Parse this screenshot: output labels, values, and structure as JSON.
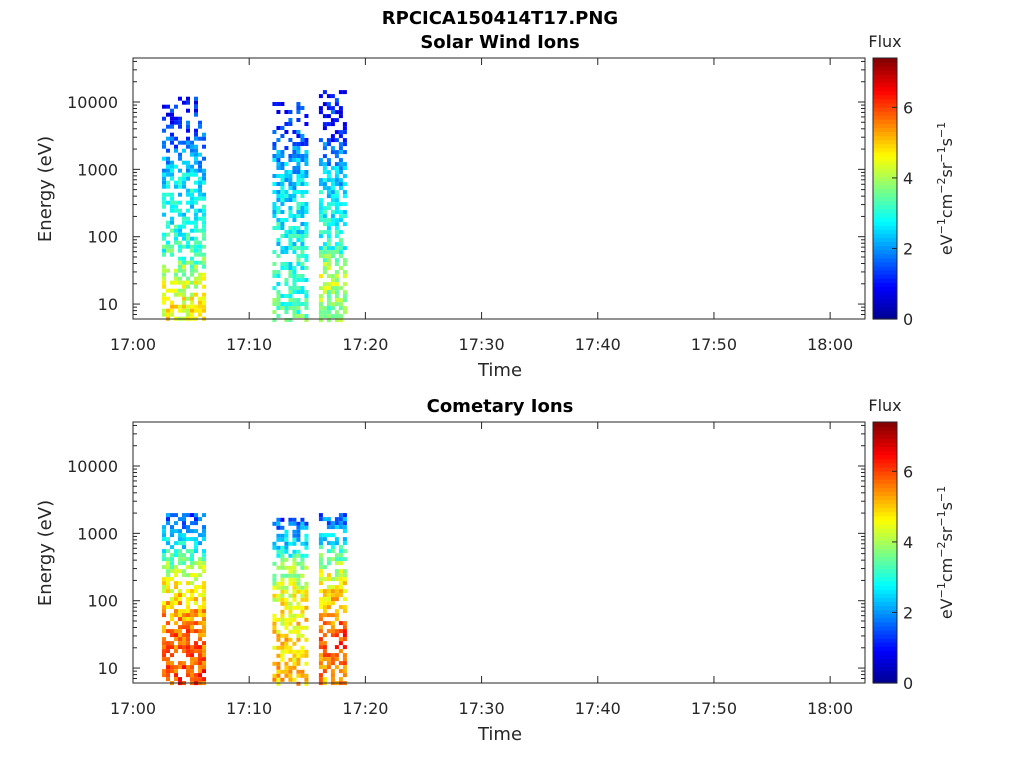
{
  "figure": {
    "title": "RPCICA150414T17.PNG"
  },
  "colors": {
    "axis": "#262626",
    "colormap": [
      "#00008f",
      "#0000ff",
      "#0080ff",
      "#00ffff",
      "#80ff80",
      "#ffff00",
      "#ff8000",
      "#ff0000",
      "#800000"
    ]
  },
  "chart_data": [
    {
      "type": "heatmap",
      "title": "Solar Wind Ions",
      "xlabel": "Time",
      "ylabel": "Energy (eV)",
      "y_scale": "log",
      "xlim": [
        "17:00",
        "18:03"
      ],
      "ylim": [
        6,
        45000
      ],
      "x_ticks": [
        "17:00",
        "17:10",
        "17:20",
        "17:30",
        "17:40",
        "17:50",
        "18:00"
      ],
      "y_ticks": [
        {
          "value": 10,
          "label": "10"
        },
        {
          "value": 100,
          "label": "100"
        },
        {
          "value": 1000,
          "label": "1000"
        },
        {
          "value": 10000,
          "label": "10000"
        }
      ],
      "colorbar": {
        "title": "Flux",
        "label": "eV-1cm-2sr-1s-1",
        "range": [
          0,
          7.4
        ],
        "ticks": [
          "0",
          "2",
          "4",
          "6"
        ]
      },
      "bursts": [
        {
          "start": "17:02.5",
          "end": "17:06.0",
          "emin": 6,
          "emax": 12000,
          "profile": [
            [
              8,
              4.6
            ],
            [
              20,
              4.3
            ],
            [
              60,
              3.2
            ],
            [
              200,
              2.8
            ],
            [
              800,
              2.6
            ],
            [
              2000,
              1.8
            ],
            [
              6000,
              1.2
            ],
            [
              12000,
              1.0
            ]
          ]
        },
        {
          "start": "17:12.0",
          "end": "17:15.0",
          "emin": 6,
          "emax": 10000,
          "profile": [
            [
              8,
              3.4
            ],
            [
              30,
              3.0
            ],
            [
              100,
              2.8
            ],
            [
              400,
              2.6
            ],
            [
              1000,
              2.3
            ],
            [
              3000,
              1.6
            ],
            [
              10000,
              1.0
            ]
          ]
        },
        {
          "start": "17:16.0",
          "end": "17:18.3",
          "emin": 6,
          "emax": 15000,
          "profile": [
            [
              8,
              3.6
            ],
            [
              25,
              4.2
            ],
            [
              80,
              3.0
            ],
            [
              300,
              2.8
            ],
            [
              1000,
              2.2
            ],
            [
              3000,
              1.4
            ],
            [
              15000,
              1.0
            ]
          ]
        }
      ]
    },
    {
      "type": "heatmap",
      "title": "Cometary Ions",
      "xlabel": "Time",
      "ylabel": "Energy (eV)",
      "y_scale": "log",
      "xlim": [
        "17:00",
        "18:03"
      ],
      "ylim": [
        6,
        45000
      ],
      "x_ticks": [
        "17:00",
        "17:10",
        "17:20",
        "17:30",
        "17:40",
        "17:50",
        "18:00"
      ],
      "y_ticks": [
        {
          "value": 10,
          "label": "10"
        },
        {
          "value": 100,
          "label": "100"
        },
        {
          "value": 1000,
          "label": "1000"
        },
        {
          "value": 10000,
          "label": "10000"
        }
      ],
      "colorbar": {
        "title": "Flux",
        "label": "eV-1cm-2sr-1s-1",
        "range": [
          0,
          7.4
        ],
        "ticks": [
          "0",
          "2",
          "4",
          "6"
        ]
      },
      "bursts": [
        {
          "start": "17:02.5",
          "end": "17:06.0",
          "emin": 6,
          "emax": 2000,
          "profile": [
            [
              8,
              6.0
            ],
            [
              30,
              5.8
            ],
            [
              100,
              5.0
            ],
            [
              300,
              4.0
            ],
            [
              600,
              2.8
            ],
            [
              2000,
              1.5
            ]
          ]
        },
        {
          "start": "17:12.0",
          "end": "17:15.0",
          "emin": 6,
          "emax": 1700,
          "profile": [
            [
              8,
              5.0
            ],
            [
              30,
              4.8
            ],
            [
              100,
              4.6
            ],
            [
              300,
              3.8
            ],
            [
              800,
              2.4
            ],
            [
              1700,
              1.5
            ]
          ]
        },
        {
          "start": "17:16.0",
          "end": "17:18.3",
          "emin": 6,
          "emax": 2000,
          "profile": [
            [
              8,
              5.4
            ],
            [
              30,
              6.0
            ],
            [
              100,
              5.0
            ],
            [
              300,
              4.2
            ],
            [
              800,
              2.6
            ],
            [
              2000,
              1.5
            ]
          ]
        }
      ]
    }
  ]
}
